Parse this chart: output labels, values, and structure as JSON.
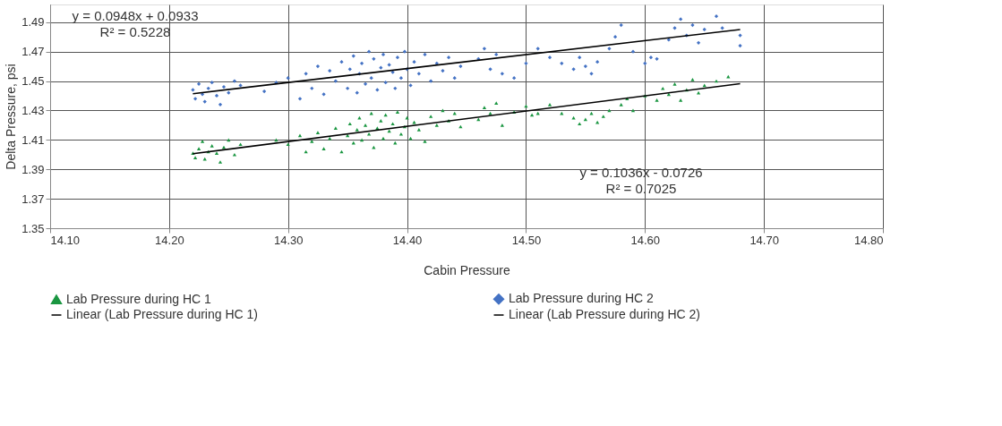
{
  "chart_data": {
    "type": "scatter",
    "xlabel": "Cabin Pressure",
    "ylabel": "Delta Pressure, psi",
    "xlim": [
      14.1,
      14.8
    ],
    "xticks": [
      {
        "value": 14.1,
        "label": "14.10"
      },
      {
        "value": 14.2,
        "label": "14.20"
      },
      {
        "value": 14.3,
        "label": "14.30"
      },
      {
        "value": 14.4,
        "label": "14.40"
      },
      {
        "value": 14.5,
        "label": "14.50"
      },
      {
        "value": 14.6,
        "label": "14.60"
      },
      {
        "value": 14.7,
        "label": "14.70"
      },
      {
        "value": 14.8,
        "label": "14.80"
      }
    ],
    "ylim": [
      1.35,
      1.502
    ],
    "yticks": [
      {
        "value": 1.35,
        "label": "1.35"
      },
      {
        "value": 1.37,
        "label": "1.37"
      },
      {
        "value": 1.39,
        "label": "1.39"
      },
      {
        "value": 1.41,
        "label": "1.41"
      },
      {
        "value": 1.43,
        "label": "1.43"
      },
      {
        "value": 1.45,
        "label": "1.45"
      },
      {
        "value": 1.47,
        "label": "1.47"
      },
      {
        "value": 1.49,
        "label": "1.49"
      }
    ],
    "grid": true,
    "legend": "bottom",
    "series": [
      {
        "name": "Lab Pressure during HC 1",
        "marker": "triangle",
        "color": "#1a9641",
        "x": [
          14.22,
          14.222,
          14.225,
          14.228,
          14.23,
          14.233,
          14.236,
          14.24,
          14.243,
          14.246,
          14.25,
          14.255,
          14.26,
          14.29,
          14.3,
          14.31,
          14.315,
          14.32,
          14.325,
          14.33,
          14.335,
          14.34,
          14.345,
          14.35,
          14.352,
          14.355,
          14.358,
          14.36,
          14.362,
          14.365,
          14.368,
          14.37,
          14.372,
          14.375,
          14.378,
          14.38,
          14.382,
          14.385,
          14.388,
          14.39,
          14.392,
          14.395,
          14.398,
          14.4,
          14.403,
          14.406,
          14.41,
          14.415,
          14.42,
          14.425,
          14.43,
          14.435,
          14.44,
          14.445,
          14.46,
          14.465,
          14.47,
          14.475,
          14.48,
          14.49,
          14.5,
          14.505,
          14.51,
          14.52,
          14.53,
          14.54,
          14.545,
          14.55,
          14.555,
          14.56,
          14.565,
          14.57,
          14.58,
          14.585,
          14.59,
          14.6,
          14.61,
          14.615,
          14.62,
          14.625,
          14.63,
          14.635,
          14.64,
          14.645,
          14.65,
          14.66,
          14.67
        ],
        "values": [
          1.401,
          1.398,
          1.404,
          1.409,
          1.397,
          1.402,
          1.406,
          1.401,
          1.395,
          1.405,
          1.41,
          1.4,
          1.407,
          1.41,
          1.407,
          1.413,
          1.402,
          1.409,
          1.415,
          1.404,
          1.411,
          1.418,
          1.402,
          1.413,
          1.421,
          1.408,
          1.417,
          1.425,
          1.41,
          1.42,
          1.414,
          1.428,
          1.405,
          1.418,
          1.423,
          1.411,
          1.427,
          1.416,
          1.421,
          1.408,
          1.429,
          1.414,
          1.419,
          1.425,
          1.411,
          1.422,
          1.417,
          1.409,
          1.426,
          1.42,
          1.43,
          1.423,
          1.428,
          1.419,
          1.424,
          1.432,
          1.428,
          1.435,
          1.42,
          1.429,
          1.433,
          1.427,
          1.428,
          1.434,
          1.428,
          1.425,
          1.421,
          1.424,
          1.428,
          1.422,
          1.426,
          1.43,
          1.434,
          1.438,
          1.43,
          1.44,
          1.437,
          1.445,
          1.441,
          1.448,
          1.437,
          1.444,
          1.451,
          1.442,
          1.447,
          1.45,
          1.453
        ]
      },
      {
        "name": "Lab Pressure during HC 2",
        "marker": "diamond",
        "color": "#4472c4",
        "x": [
          14.22,
          14.222,
          14.225,
          14.228,
          14.23,
          14.233,
          14.236,
          14.24,
          14.243,
          14.246,
          14.25,
          14.255,
          14.26,
          14.28,
          14.29,
          14.3,
          14.31,
          14.315,
          14.32,
          14.325,
          14.33,
          14.335,
          14.34,
          14.345,
          14.35,
          14.352,
          14.355,
          14.358,
          14.36,
          14.362,
          14.365,
          14.368,
          14.37,
          14.372,
          14.375,
          14.378,
          14.38,
          14.382,
          14.385,
          14.388,
          14.39,
          14.392,
          14.395,
          14.398,
          14.4,
          14.403,
          14.406,
          14.41,
          14.415,
          14.42,
          14.425,
          14.43,
          14.435,
          14.44,
          14.445,
          14.46,
          14.465,
          14.47,
          14.475,
          14.48,
          14.49,
          14.5,
          14.51,
          14.52,
          14.53,
          14.54,
          14.545,
          14.55,
          14.555,
          14.56,
          14.57,
          14.575,
          14.58,
          14.59,
          14.6,
          14.605,
          14.61,
          14.62,
          14.625,
          14.63,
          14.635,
          14.64,
          14.645,
          14.65,
          14.66,
          14.665,
          14.68,
          14.68
        ],
        "values": [
          1.444,
          1.438,
          1.448,
          1.441,
          1.436,
          1.445,
          1.449,
          1.44,
          1.434,
          1.446,
          1.442,
          1.45,
          1.447,
          1.443,
          1.449,
          1.452,
          1.438,
          1.455,
          1.445,
          1.46,
          1.441,
          1.457,
          1.45,
          1.463,
          1.445,
          1.458,
          1.467,
          1.442,
          1.455,
          1.462,
          1.448,
          1.47,
          1.452,
          1.465,
          1.444,
          1.459,
          1.468,
          1.449,
          1.461,
          1.456,
          1.445,
          1.466,
          1.452,
          1.47,
          1.458,
          1.447,
          1.463,
          1.455,
          1.468,
          1.45,
          1.462,
          1.457,
          1.466,
          1.452,
          1.46,
          1.465,
          1.472,
          1.458,
          1.468,
          1.455,
          1.452,
          1.462,
          1.472,
          1.466,
          1.462,
          1.458,
          1.466,
          1.46,
          1.455,
          1.463,
          1.472,
          1.48,
          1.488,
          1.47,
          1.462,
          1.466,
          1.465,
          1.478,
          1.486,
          1.492,
          1.481,
          1.488,
          1.476,
          1.485,
          1.494,
          1.486,
          1.481,
          1.474
        ]
      },
      {
        "name": "Linear (Lab Pressure during HC 1)",
        "type": "line",
        "marker": "none",
        "color": "#000000",
        "x": [
          14.22,
          14.68
        ],
        "values": [
          1.4006,
          1.4482
        ]
      },
      {
        "name": "Linear (Lab Pressure during HC 2)",
        "type": "line",
        "marker": "none",
        "color": "#000000",
        "x": [
          14.22,
          14.68
        ],
        "values": [
          1.4414,
          1.485
        ]
      }
    ],
    "annotations": [
      "y = 0.0948x + 0.0933",
      "R² = 0.5228",
      "y = 0.1036x - 0.0726",
      "R² = 0.7025"
    ]
  }
}
